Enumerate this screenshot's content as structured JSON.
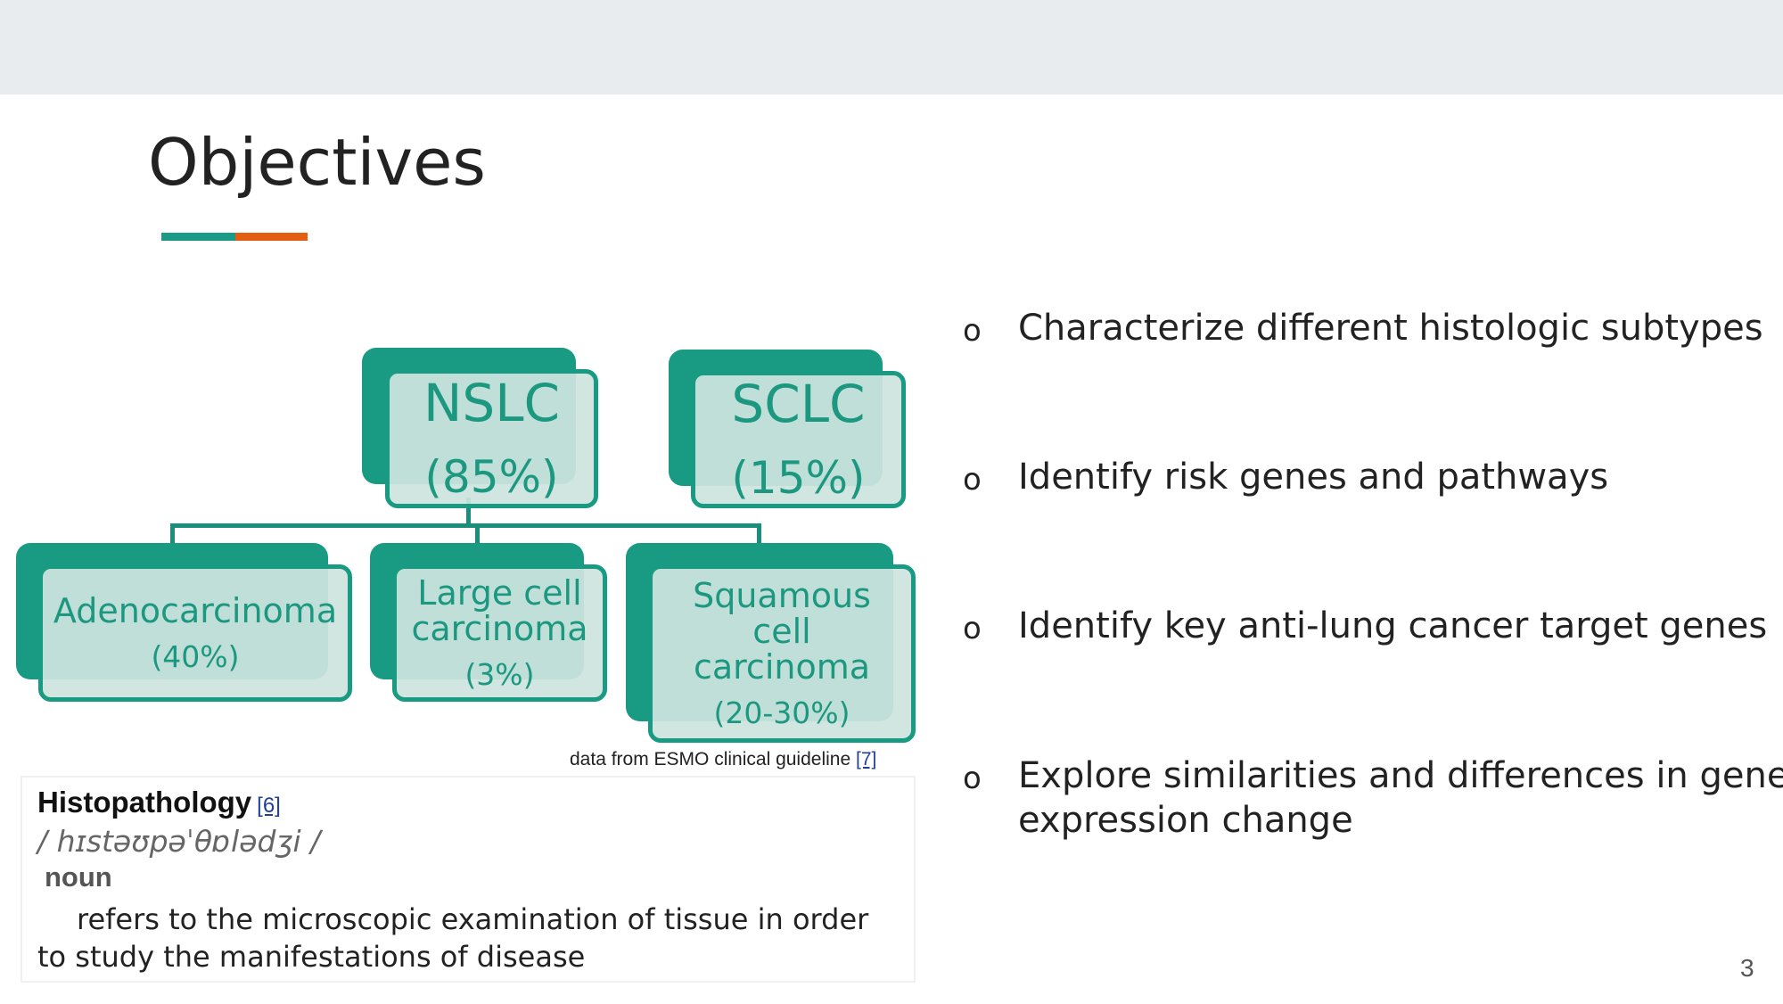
{
  "slide": {
    "title": "Objectives",
    "page_number": "3",
    "colors": {
      "accent_teal": "#1b9b86",
      "accent_orange": "#e35d12",
      "header_bar": "#e8ecee"
    }
  },
  "diagram": {
    "nslc": {
      "label": "NSLC",
      "percent": "(85%)"
    },
    "sclc": {
      "label": "SCLC",
      "percent": "(15%)"
    },
    "adeno": {
      "label": "Adenocarcinoma",
      "percent": "(40%)"
    },
    "large": {
      "label": "Large cell carcinoma",
      "percent": "(3%)"
    },
    "squamous": {
      "label": "Squamous cell carcinoma",
      "percent": "(20-30%)"
    },
    "source": {
      "text": "data from ESMO clinical guideline",
      "ref": "[7]"
    }
  },
  "definition": {
    "term": "Histopathology",
    "ref": "[6]",
    "pronunciation": "/ hɪstəʊpəˈθɒlədʒi /",
    "part_of_speech": "noun",
    "text": "refers to the microscopic examination of tissue in order to study the manifestations of disease"
  },
  "objectives": [
    {
      "marker": "o",
      "text": "Characterize different histologic subtypes"
    },
    {
      "marker": "o",
      "text": "Identify risk genes and pathways"
    },
    {
      "marker": "o",
      "text": "Identify key anti-lung cancer target genes"
    },
    {
      "marker": "o",
      "text": "Explore similarities and differences in gene expression change"
    }
  ]
}
